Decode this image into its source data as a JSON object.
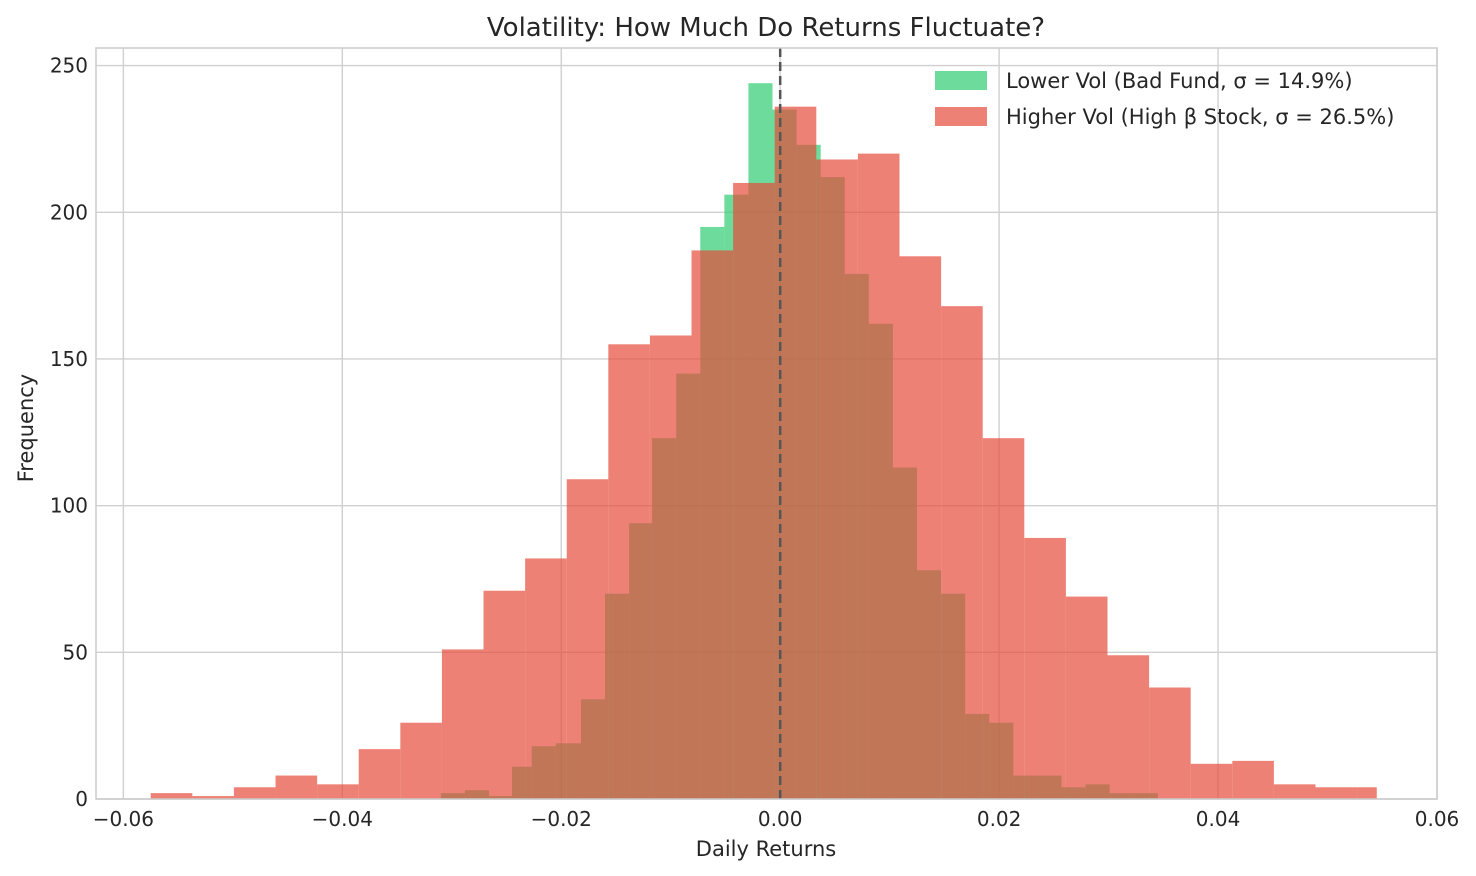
{
  "chart_data": {
    "type": "histogram",
    "title": "Volatility: How Much Do Returns Fluctuate?",
    "xlabel": "Daily Returns",
    "ylabel": "Frequency",
    "xlim": [
      -0.0625,
      0.06
    ],
    "ylim": [
      0,
      256
    ],
    "xticks": [
      -0.06,
      -0.04,
      -0.02,
      0.0,
      0.02,
      0.04,
      0.06
    ],
    "xtick_labels": [
      "−0.06",
      "−0.04",
      "−0.02",
      "0.00",
      "0.02",
      "0.04",
      "0.06"
    ],
    "yticks": [
      0,
      50,
      100,
      150,
      200,
      250
    ],
    "ytick_labels": [
      "0",
      "50",
      "100",
      "150",
      "200",
      "250"
    ],
    "grid": true,
    "legend_position": "top-right",
    "vline": {
      "x": 0.0,
      "style": "dashed",
      "color": "#555555"
    },
    "series": [
      {
        "name": "Lower Vol (Bad Fund, σ = 14.9%)",
        "color": "#2ecc71",
        "opacity": 0.7,
        "bins": [
          [
            -0.031,
            -0.0288,
            2
          ],
          [
            -0.0288,
            -0.0266,
            3
          ],
          [
            -0.0266,
            -0.0245,
            1
          ],
          [
            -0.0245,
            -0.0227,
            11
          ],
          [
            -0.0227,
            -0.0205,
            18
          ],
          [
            -0.0205,
            -0.0182,
            19
          ],
          [
            -0.0182,
            -0.016,
            34
          ],
          [
            -0.016,
            -0.0138,
            70
          ],
          [
            -0.0138,
            -0.0117,
            94
          ],
          [
            -0.0117,
            -0.0095,
            123
          ],
          [
            -0.0095,
            -0.0073,
            145
          ],
          [
            -0.0073,
            -0.0051,
            195
          ],
          [
            -0.0051,
            -0.0029,
            206
          ],
          [
            -0.0029,
            -0.0007,
            244
          ],
          [
            -0.0007,
            0.0015,
            235
          ],
          [
            0.0015,
            0.0037,
            223
          ],
          [
            0.0037,
            0.0059,
            212
          ],
          [
            0.0059,
            0.0081,
            179
          ],
          [
            0.0081,
            0.0103,
            162
          ],
          [
            0.0103,
            0.0125,
            113
          ],
          [
            0.0125,
            0.0147,
            78
          ],
          [
            0.0147,
            0.0169,
            70
          ],
          [
            0.0169,
            0.0191,
            29
          ],
          [
            0.0191,
            0.0213,
            26
          ],
          [
            0.0213,
            0.0235,
            8
          ],
          [
            0.0235,
            0.0257,
            8
          ],
          [
            0.0257,
            0.0279,
            4
          ],
          [
            0.0279,
            0.0301,
            5
          ],
          [
            0.0301,
            0.0323,
            2
          ],
          [
            0.0323,
            0.0345,
            2
          ]
        ]
      },
      {
        "name": "Higher Vol (High β Stock, σ = 26.5%)",
        "color": "#e74c3c",
        "opacity": 0.7,
        "bins": [
          [
            -0.0575,
            -0.0537,
            2
          ],
          [
            -0.0537,
            -0.0499,
            1
          ],
          [
            -0.0499,
            -0.0461,
            4
          ],
          [
            -0.0461,
            -0.0423,
            8
          ],
          [
            -0.0423,
            -0.0385,
            5
          ],
          [
            -0.0385,
            -0.0347,
            17
          ],
          [
            -0.0347,
            -0.0309,
            26
          ],
          [
            -0.0309,
            -0.0271,
            51
          ],
          [
            -0.0271,
            -0.0233,
            71
          ],
          [
            -0.0233,
            -0.0195,
            82
          ],
          [
            -0.0195,
            -0.0157,
            109
          ],
          [
            -0.0157,
            -0.0119,
            155
          ],
          [
            -0.0119,
            -0.0081,
            158
          ],
          [
            -0.0081,
            -0.0043,
            187
          ],
          [
            -0.0043,
            -0.0005,
            210
          ],
          [
            -0.0005,
            0.0033,
            236
          ],
          [
            0.0033,
            0.0071,
            218
          ],
          [
            0.0071,
            0.0109,
            220
          ],
          [
            0.0109,
            0.0147,
            185
          ],
          [
            0.0147,
            0.0185,
            168
          ],
          [
            0.0185,
            0.0223,
            123
          ],
          [
            0.0223,
            0.0261,
            89
          ],
          [
            0.0261,
            0.0299,
            69
          ],
          [
            0.0299,
            0.0337,
            49
          ],
          [
            0.0337,
            0.0375,
            38
          ],
          [
            0.0375,
            0.0413,
            12
          ],
          [
            0.0413,
            0.0451,
            13
          ],
          [
            0.0451,
            0.0489,
            5
          ],
          [
            0.0489,
            0.0527,
            4
          ],
          [
            0.0527,
            0.0545,
            4
          ]
        ]
      }
    ]
  }
}
